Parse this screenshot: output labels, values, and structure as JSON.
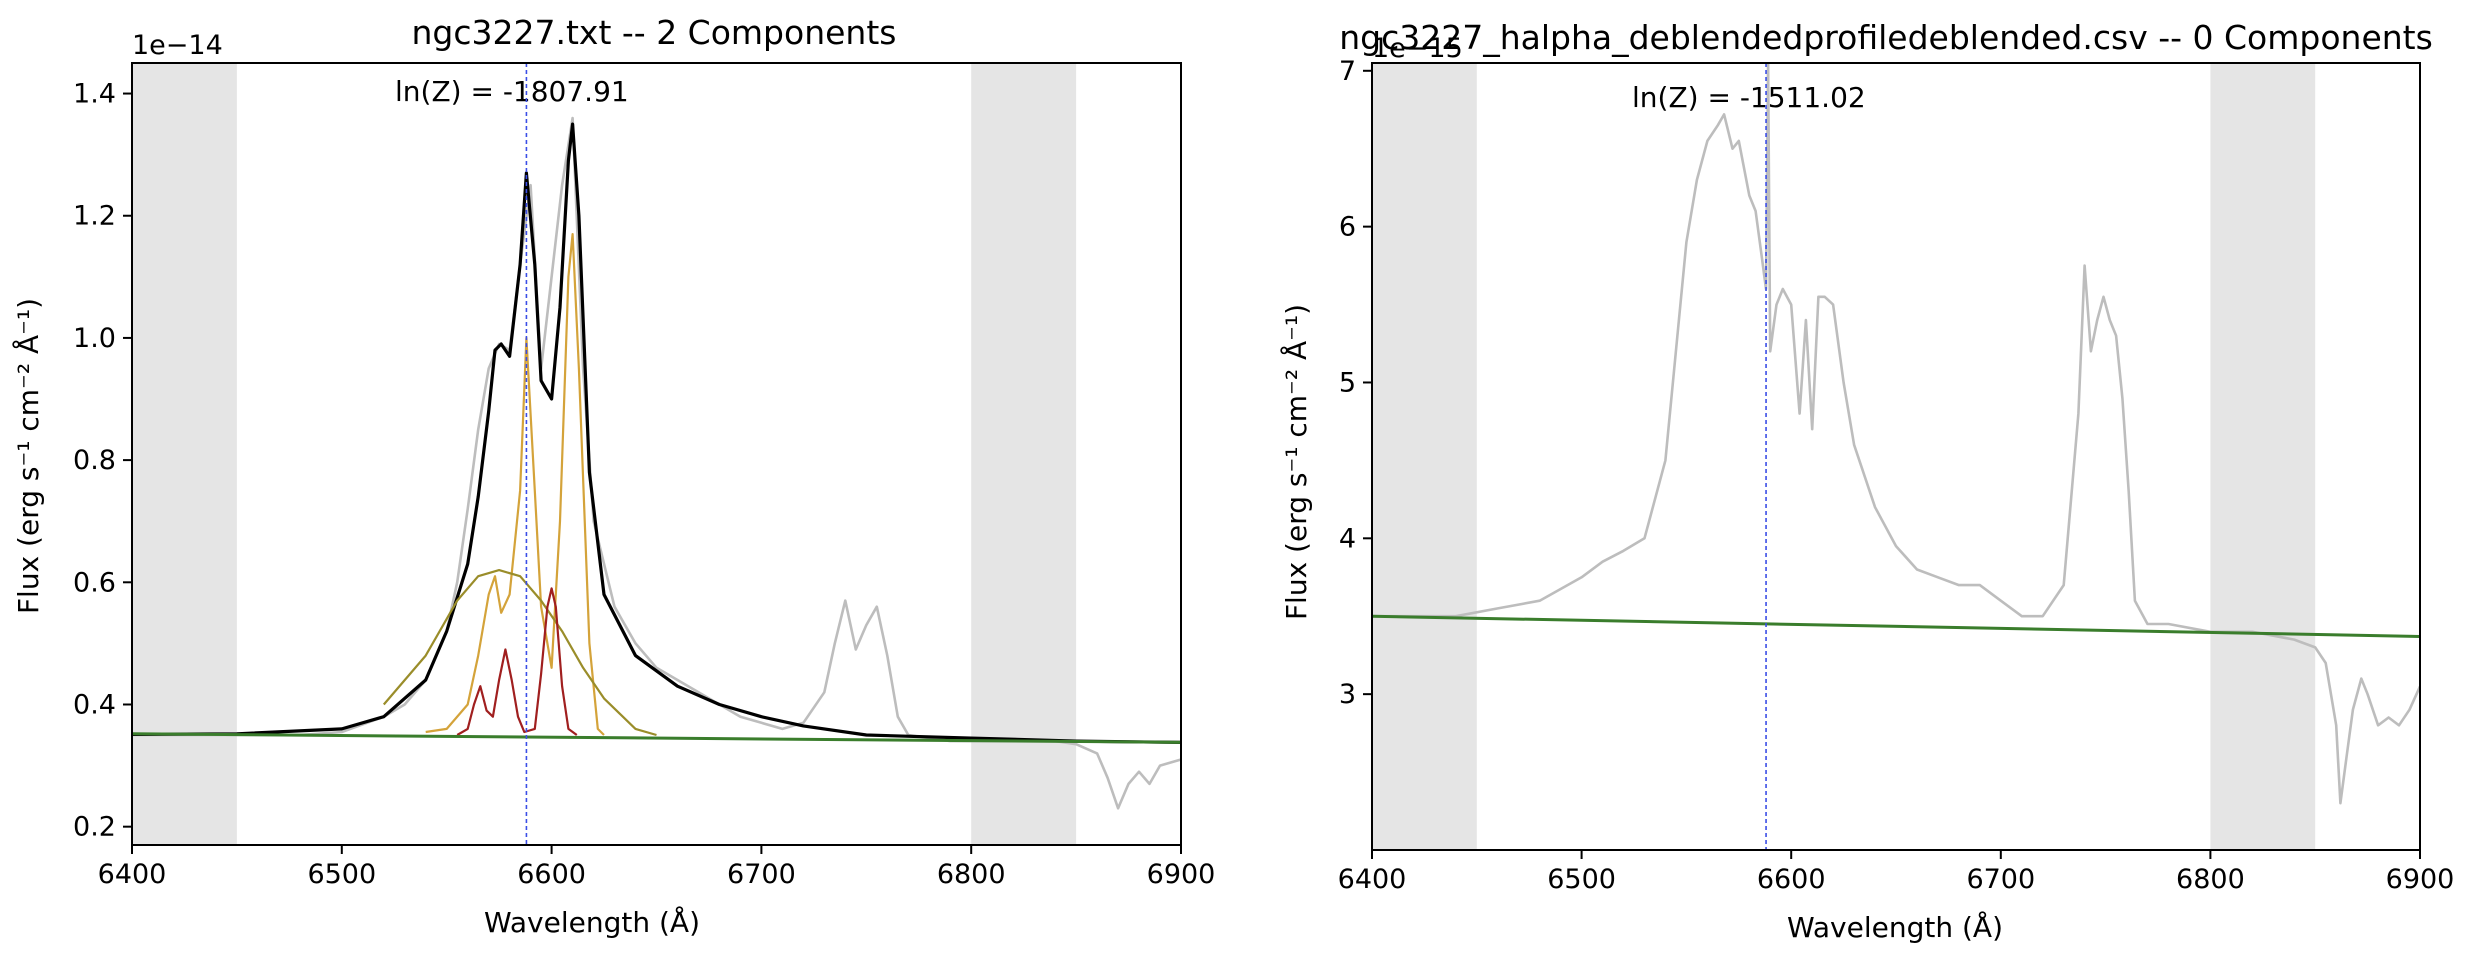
{
  "charts": [
    {
      "title": "ngc3227.txt -- 2 Components",
      "ylabel": "Flux (erg s⁻¹ cm⁻² Å⁻¹)",
      "xlabel": "Wavelength (Å)",
      "offset_label": "1e−14",
      "annotation": "ln(Z) = -1807.91"
    },
    {
      "title": "ngc3227_halpha_deblendedprofiledeblended.csv -- 0 Components",
      "ylabel": "Flux (erg s⁻¹ cm⁻² Å⁻¹)",
      "xlabel": "Wavelength (Å)",
      "offset_label": "1e−15",
      "annotation": "ln(Z) = -1511.02"
    }
  ],
  "chart_data": [
    {
      "type": "line",
      "title": "ngc3227.txt -- 2 Components",
      "xlabel": "Wavelength (Å)",
      "ylabel": "Flux (erg s⁻¹ cm⁻² Å⁻¹)",
      "y_scale_factor": "1e-14",
      "xlim": [
        6400,
        6900
      ],
      "ylim": [
        0.17,
        1.45
      ],
      "x_ticks": [
        6400,
        6500,
        6600,
        6700,
        6800,
        6900
      ],
      "x_tick_labels": [
        "6400",
        "6500",
        "6600",
        "6700",
        "6800",
        "6900"
      ],
      "y_ticks": [
        0.2,
        0.4,
        0.6,
        0.8,
        1.0,
        1.2,
        1.4
      ],
      "y_tick_labels": [
        "0.2",
        "0.4",
        "0.6",
        "0.8",
        "1.0",
        "1.2",
        "1.4"
      ],
      "shaded_x_ranges": [
        [
          6400,
          6450
        ],
        [
          6800,
          6850
        ]
      ],
      "vertical_line_x": 6588,
      "annotation": "ln(Z) = -1807.91",
      "continuum": {
        "x": [
          6400,
          6900
        ],
        "y": [
          0.352,
          0.338
        ]
      },
      "grid": false,
      "legend": "none",
      "series": [
        {
          "x": [
            6400,
            6420,
            6440,
            6460,
            6480,
            6500,
            6520,
            6530,
            6540,
            6550,
            6555,
            6560,
            6565,
            6570,
            6575,
            6580,
            6585,
            6590,
            6595,
            6600,
            6605,
            6610,
            6615,
            6620,
            6630,
            6640,
            6650,
            6660,
            6670,
            6680,
            6690,
            6700,
            6710,
            6720,
            6730,
            6735,
            6740,
            6745,
            6750,
            6755,
            6760,
            6765,
            6770,
            6780,
            6790,
            6800,
            6820,
            6840,
            6850,
            6860,
            6865,
            6870,
            6875,
            6880,
            6885,
            6890,
            6900
          ],
          "y": [
            0.35,
            0.35,
            0.35,
            0.35,
            0.35,
            0.355,
            0.38,
            0.4,
            0.44,
            0.52,
            0.6,
            0.72,
            0.85,
            0.95,
            0.99,
            0.98,
            1.12,
            1.25,
            0.95,
            1.1,
            1.25,
            1.36,
            0.95,
            0.7,
            0.56,
            0.5,
            0.46,
            0.44,
            0.42,
            0.4,
            0.38,
            0.37,
            0.36,
            0.37,
            0.42,
            0.5,
            0.57,
            0.49,
            0.53,
            0.56,
            0.48,
            0.38,
            0.35,
            0.345,
            0.34,
            0.34,
            0.34,
            0.34,
            0.335,
            0.32,
            0.28,
            0.23,
            0.27,
            0.29,
            0.27,
            0.3,
            0.31
          ]
        },
        {
          "x": [
            6400,
            6450,
            6500,
            6520,
            6540,
            6550,
            6560,
            6565,
            6570,
            6573,
            6576,
            6580,
            6585,
            6588,
            6592,
            6595,
            6600,
            6604,
            6608,
            6610,
            6613,
            6618,
            6625,
            6640,
            6660,
            6680,
            6700,
            6720,
            6750,
            6800,
            6850,
            6900
          ],
          "y": [
            0.351,
            0.352,
            0.36,
            0.38,
            0.44,
            0.52,
            0.63,
            0.74,
            0.88,
            0.98,
            0.99,
            0.97,
            1.12,
            1.27,
            1.12,
            0.93,
            0.9,
            1.05,
            1.29,
            1.35,
            1.2,
            0.78,
            0.58,
            0.48,
            0.43,
            0.4,
            0.38,
            0.365,
            0.35,
            0.345,
            0.34,
            0.338
          ]
        },
        {
          "x": [
            6540,
            6550,
            6560,
            6565,
            6570,
            6573,
            6576,
            6580,
            6585,
            6588,
            6592,
            6595,
            6600,
            6604,
            6608,
            6610,
            6613,
            6618,
            6622,
            6625
          ],
          "y": [
            0.355,
            0.36,
            0.4,
            0.48,
            0.58,
            0.61,
            0.55,
            0.58,
            0.75,
            1.0,
            0.75,
            0.56,
            0.46,
            0.7,
            1.1,
            1.17,
            0.95,
            0.5,
            0.36,
            0.35
          ]
        },
        {
          "x": [
            6520,
            6540,
            6555,
            6565,
            6575,
            6585,
            6595,
            6605,
            6615,
            6625,
            6640,
            6650
          ],
          "y": [
            0.4,
            0.48,
            0.57,
            0.61,
            0.62,
            0.61,
            0.57,
            0.52,
            0.46,
            0.41,
            0.36,
            0.35
          ]
        },
        {
          "x": [
            6555,
            6560,
            6563,
            6566,
            6569,
            6572,
            6575,
            6578,
            6581,
            6584,
            6587,
            6592,
            6595,
            6598,
            6600,
            6602,
            6605,
            6608,
            6612
          ],
          "y": [
            0.35,
            0.36,
            0.4,
            0.43,
            0.39,
            0.38,
            0.44,
            0.49,
            0.44,
            0.38,
            0.355,
            0.36,
            0.45,
            0.56,
            0.59,
            0.56,
            0.43,
            0.36,
            0.35
          ]
        }
      ]
    },
    {
      "type": "line",
      "title": "ngc3227_halpha_deblendedprofiledeblended.csv -- 0 Components",
      "xlabel": "Wavelength (Å)",
      "ylabel": "Flux (erg s⁻¹ cm⁻² Å⁻¹)",
      "y_scale_factor": "1e-15",
      "xlim": [
        6400,
        6900
      ],
      "ylim": [
        2.0,
        7.05
      ],
      "x_ticks": [
        6400,
        6500,
        6600,
        6700,
        6800,
        6900
      ],
      "x_tick_labels": [
        "6400",
        "6500",
        "6600",
        "6700",
        "6800",
        "6900"
      ],
      "y_ticks": [
        3,
        4,
        5,
        6,
        7
      ],
      "y_tick_labels": [
        "3",
        "4",
        "5",
        "6",
        "7"
      ],
      "shaded_x_ranges": [
        [
          6400,
          6450
        ],
        [
          6800,
          6850
        ]
      ],
      "vertical_line_x": 6588,
      "annotation": "ln(Z) = -1511.02",
      "continuum": {
        "x": [
          6400,
          6900
        ],
        "y": [
          3.5,
          3.37
        ]
      },
      "grid": false,
      "legend": "none",
      "series": [
        {
          "x": [
            6400,
            6420,
            6440,
            6460,
            6480,
            6500,
            6510,
            6520,
            6530,
            6540,
            6545,
            6550,
            6555,
            6560,
            6565,
            6568,
            6572,
            6575,
            6580,
            6583,
            6586,
            6588,
            6589,
            6590,
            6593,
            6596,
            6600,
            6604,
            6607,
            6610,
            6613,
            6616,
            6620,
            6625,
            6630,
            6640,
            6650,
            6660,
            6670,
            6680,
            6690,
            6700,
            6710,
            6720,
            6730,
            6737,
            6740,
            6743,
            6746,
            6749,
            6752,
            6755,
            6758,
            6761,
            6764,
            6770,
            6780,
            6800,
            6820,
            6840,
            6850,
            6855,
            6860,
            6862,
            6865,
            6868,
            6872,
            6875,
            6880,
            6885,
            6890,
            6895,
            6900
          ],
          "y": [
            3.5,
            3.5,
            3.5,
            3.55,
            3.6,
            3.75,
            3.85,
            3.92,
            4.0,
            4.5,
            5.2,
            5.9,
            6.3,
            6.55,
            6.65,
            6.72,
            6.5,
            6.55,
            6.2,
            6.1,
            5.8,
            5.6,
            7.05,
            5.2,
            5.5,
            5.6,
            5.5,
            4.8,
            5.4,
            4.7,
            5.55,
            5.55,
            5.5,
            5.0,
            4.6,
            4.2,
            3.95,
            3.8,
            3.75,
            3.7,
            3.7,
            3.6,
            3.5,
            3.5,
            3.7,
            4.8,
            5.75,
            5.2,
            5.4,
            5.55,
            5.4,
            5.3,
            4.9,
            4.3,
            3.6,
            3.45,
            3.45,
            3.4,
            3.4,
            3.35,
            3.3,
            3.2,
            2.8,
            2.3,
            2.6,
            2.9,
            3.1,
            3.0,
            2.8,
            2.85,
            2.8,
            2.9,
            3.05
          ]
        }
      ]
    }
  ]
}
